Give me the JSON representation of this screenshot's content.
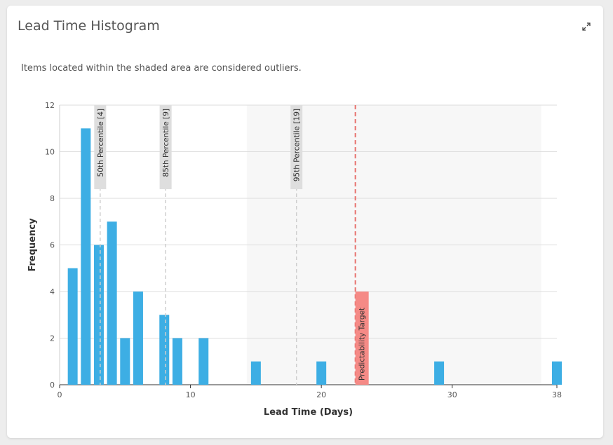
{
  "card": {
    "title": "Lead Time Histogram",
    "note": "Items located within the shaded area are considered outliers."
  },
  "icons": {
    "expand": "expand-icon"
  },
  "chart_data": {
    "type": "bar",
    "xlabel": "Lead Time (Days)",
    "ylabel": "Frequency",
    "xlim": [
      0,
      38
    ],
    "ylim": [
      0,
      12
    ],
    "x_ticks": [
      0,
      10,
      20,
      30,
      38
    ],
    "y_ticks": [
      0,
      2,
      4,
      6,
      8,
      10,
      12
    ],
    "grid": true,
    "bar_color": "#3daee4",
    "bars": [
      {
        "x": 1,
        "y": 5
      },
      {
        "x": 2,
        "y": 11
      },
      {
        "x": 3,
        "y": 6
      },
      {
        "x": 4,
        "y": 7
      },
      {
        "x": 5,
        "y": 2
      },
      {
        "x": 6,
        "y": 4
      },
      {
        "x": 8,
        "y": 3
      },
      {
        "x": 9,
        "y": 2
      },
      {
        "x": 11,
        "y": 2
      },
      {
        "x": 15,
        "y": 1
      },
      {
        "x": 20,
        "y": 1
      },
      {
        "x": 29,
        "y": 1
      },
      {
        "x": 38,
        "y": 1
      }
    ],
    "outlier_region": {
      "from": 14.3,
      "to": 36.8,
      "color": "#f7f7f7"
    },
    "percentile_lines": [
      {
        "label": "50th Percentile [4]",
        "x": 3.1
      },
      {
        "label": "85th Percentile [9]",
        "x": 8.1
      },
      {
        "label": "95th Percentile [19]",
        "x": 18.1
      }
    ],
    "target_line": {
      "label": "Predictability Target",
      "x": 22.6,
      "color": "#e8736e"
    }
  }
}
